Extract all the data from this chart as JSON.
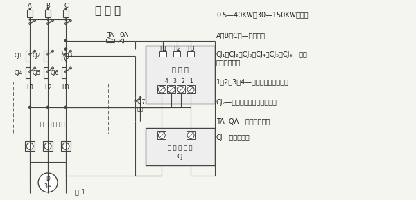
{
  "title": "接 线 图",
  "bg_color": "#f5f5f0",
  "line_color": "#444444",
  "text_color": "#222222",
  "figsize": [
    6.0,
    2.89
  ],
  "dpi": 100,
  "right_labels": [
    "0.5—40KW、30—150KW接线图",
    "A、B、C、—三相电源",
    "CJ₁、CJ₂、CJ₃、CJ₄、CJ₅、CJ₆—交流",
    "接触器主触头",
    "1、2、3、4—保护器接线端子号码",
    "CJ₇—交流接触器辅助常开触头",
    "TA  QA—停止起动按鈕",
    "CJ—接触器线圈"
  ],
  "fig1_label": "图 1",
  "label_A": "A",
  "label_B": "B",
  "label_C": "C",
  "label_TA": "TA",
  "label_QA": "QA",
  "label_CJ1": "CJ1",
  "label_CJ2": "CJ2",
  "label_CJ3": "CJ3",
  "label_CJ4": "CJ4",
  "label_CJ5": "CJ5",
  "label_CJ6": "CJ6",
  "label_CJ7": "CJ7",
  "label_zichan": "自倒",
  "label_baohuqi": "保 护 器",
  "label_H1": "H1",
  "label_H2": "H2",
  "label_H3": "H3",
  "label_nums": "4   3   2   1",
  "label_jcq": "接 触 器 线 圈",
  "label_CJ_box": "CJ",
  "label_D": "D\n3~",
  "label_chuandao": "穿 过 导 线 孔"
}
